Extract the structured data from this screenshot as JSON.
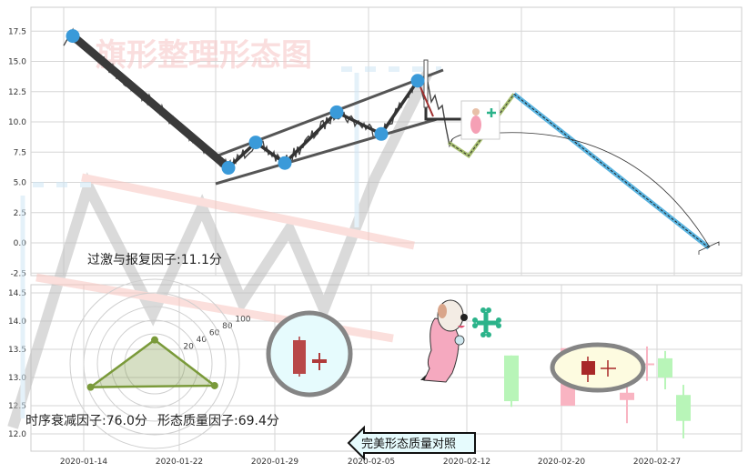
{
  "watermark_title": "旗形整理形态图",
  "colors": {
    "pivot": "#3a9ad9",
    "zigzag": "#333333",
    "up_light": "#f9b4c2",
    "down_light": "#b8f5b8",
    "perfect_candle": "#b03a3a",
    "bone": "#2bb38a",
    "blue_leg": "#5ab4e0",
    "green_leg": "#a8c070"
  },
  "chart_data": [
    {
      "type": "line",
      "title": "",
      "ylim": [
        -2.5,
        19
      ],
      "yticks": [
        "17.5",
        "15.0",
        "12.5",
        "10.0",
        "7.5",
        "5.0",
        "2.5",
        "0.0",
        "-2.5"
      ],
      "grid": true,
      "pivots": [
        17.1,
        6.2,
        8.3,
        6.6,
        10.8,
        9.0,
        13.4
      ],
      "projection": [
        8.3,
        7.2,
        12.3,
        -0.4
      ]
    },
    {
      "type": "candlestick",
      "ylim": [
        11.7,
        14.7
      ],
      "yticks": [
        "14.5",
        "14.0",
        "13.5",
        "13.0",
        "12.5",
        "12.0"
      ],
      "xticks": [
        "2020-01-14",
        "2020-01-22",
        "2020-01-29",
        "2020-02-05",
        "2020-02-12",
        "2020-02-20",
        "2020-02-27"
      ],
      "grid": true,
      "candles": [
        {
          "open": 13.39,
          "high": 13.39,
          "low": 12.48,
          "close": 12.58
        },
        {
          "open": 12.5,
          "high": 13.52,
          "low": 12.5,
          "close": 13.52
        },
        {
          "open": 12.6,
          "high": 12.97,
          "low": 12.19,
          "close": 12.73
        },
        {
          "open": 13.24,
          "high": 13.55,
          "low": 12.94,
          "close": 13.25
        },
        {
          "open": 13.34,
          "high": 13.47,
          "low": 12.79,
          "close": 13.0
        },
        {
          "open": 12.69,
          "high": 12.87,
          "low": 11.92,
          "close": 12.23
        }
      ]
    },
    {
      "type": "radar",
      "rticks": [
        "20",
        "40",
        "60",
        "80",
        "100"
      ],
      "factors": [
        {
          "label": "过激与报复因子:11.1分",
          "value": 11.1
        },
        {
          "label": "时序衰减因子:76.0分",
          "value": 76.0
        },
        {
          "label": "形态质量因子:69.4分",
          "value": 69.4
        }
      ]
    }
  ],
  "compare_label": "完美形态质量对照"
}
